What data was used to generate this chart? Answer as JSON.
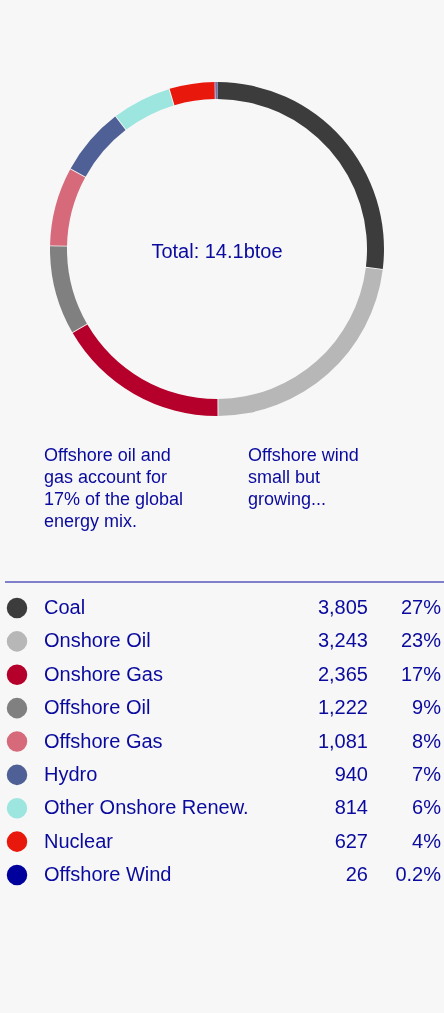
{
  "chart_data": {
    "type": "donut",
    "categories": [
      "Coal",
      "Onshore Oil",
      "Onshore Gas",
      "Offshore Oil",
      "Offshore Gas",
      "Hydro",
      "Other Onshore Renew.",
      "Nuclear",
      "Offshore Wind"
    ],
    "values": [
      3805,
      3243,
      2365,
      1222,
      1081,
      940,
      814,
      627,
      26
    ],
    "colors": [
      "#3c3c3c",
      "#b7b7b7",
      "#b5002b",
      "#808080",
      "#d66a7a",
      "#4f6096",
      "#9de5df",
      "#e8190c",
      "#00009c"
    ],
    "value_labels": [
      "3,805",
      "3,243",
      "2,365",
      "1,222",
      "1,081",
      "940",
      "814",
      "627",
      "26"
    ],
    "legend": "bottom",
    "annotations": [
      "Total: 14.1btoe",
      "Offshore oil and gas account for 17% of the global energy mix.",
      "Offshore wind small but growing...",
      {
        "text": "27%",
        "x": "Coal"
      },
      {
        "text": "23%",
        "x": "Onshore Oil"
      },
      {
        "text": "17%",
        "x": "Onshore Gas"
      },
      {
        "text": "9%",
        "x": "Offshore Oil"
      },
      {
        "text": "8%",
        "x": "Offshore Gas"
      },
      {
        "text": "7%",
        "x": "Hydro"
      },
      {
        "text": "6%",
        "x": "Other Onshore Renew."
      },
      {
        "text": "4%",
        "x": "Nuclear"
      },
      {
        "text": "0.2%",
        "x": "Offshore Wind"
      }
    ]
  }
}
